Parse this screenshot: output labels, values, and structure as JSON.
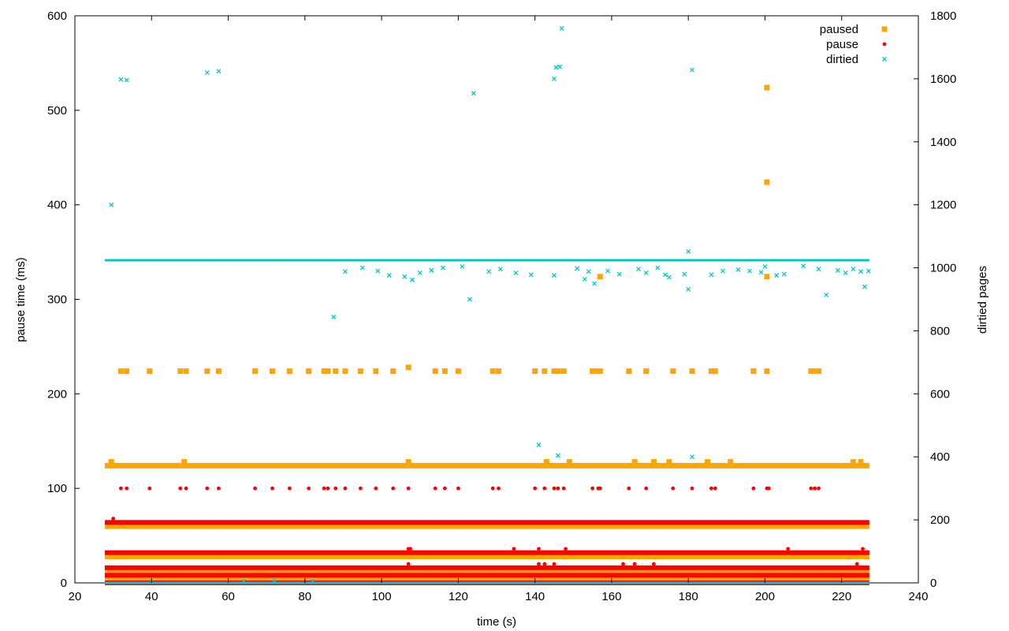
{
  "chart_data": {
    "type": "scatter",
    "title": "",
    "xlabel": "time (s)",
    "ylabel": "pause time (ms)",
    "y2label": "dirtied pages",
    "xlim": [
      20,
      240
    ],
    "ylim": [
      0,
      600
    ],
    "y2lim": [
      0,
      1800
    ],
    "xticks": [
      20,
      40,
      60,
      80,
      100,
      120,
      140,
      160,
      180,
      200,
      220,
      240
    ],
    "yticks": [
      0,
      100,
      200,
      300,
      400,
      500,
      600
    ],
    "y2ticks": [
      0,
      200,
      400,
      600,
      800,
      1000,
      1200,
      1400,
      1600,
      1800
    ],
    "grid": false,
    "legend_position": "top-right",
    "colors": {
      "paused": "#ffa500",
      "pause": "#ff0000",
      "dirtied": "#00c8c8"
    },
    "series": [
      {
        "name": "paused",
        "axis": "y",
        "marker": "square",
        "bands": [
          {
            "y": 4,
            "x_range": [
              28,
              227
            ]
          },
          {
            "y": 12,
            "x_range": [
              28,
              227
            ]
          },
          {
            "y": 28,
            "x_range": [
              28,
              227
            ]
          },
          {
            "y": 60,
            "x_range": [
              28,
              227
            ]
          },
          {
            "y": 124,
            "x_range": [
              28,
              227
            ]
          }
        ],
        "points": [
          [
            29.5,
            128
          ],
          [
            48.5,
            128
          ],
          [
            107,
            128
          ],
          [
            143,
            128
          ],
          [
            149,
            128
          ],
          [
            166,
            128
          ],
          [
            171,
            128
          ],
          [
            175,
            128
          ],
          [
            185,
            128
          ],
          [
            191,
            128
          ],
          [
            223,
            128
          ],
          [
            225,
            128
          ],
          [
            32,
            224
          ],
          [
            33.5,
            224
          ],
          [
            39.5,
            224
          ],
          [
            47.5,
            224
          ],
          [
            49,
            224
          ],
          [
            54.5,
            224
          ],
          [
            57.5,
            224
          ],
          [
            67,
            224
          ],
          [
            71.5,
            224
          ],
          [
            76,
            224
          ],
          [
            81,
            224
          ],
          [
            85,
            224
          ],
          [
            86,
            224
          ],
          [
            88,
            224
          ],
          [
            90.5,
            224
          ],
          [
            94.5,
            224
          ],
          [
            98.5,
            224
          ],
          [
            103,
            224
          ],
          [
            107,
            228
          ],
          [
            114,
            224
          ],
          [
            116.5,
            224
          ],
          [
            120,
            224
          ],
          [
            129,
            224
          ],
          [
            130.5,
            224
          ],
          [
            140,
            224
          ],
          [
            142.5,
            224
          ],
          [
            145,
            224
          ],
          [
            146,
            224
          ],
          [
            147.5,
            224
          ],
          [
            155,
            224
          ],
          [
            156,
            224
          ],
          [
            157,
            224
          ],
          [
            164.5,
            224
          ],
          [
            169,
            224
          ],
          [
            176,
            224
          ],
          [
            181,
            224
          ],
          [
            186,
            224
          ],
          [
            187,
            224
          ],
          [
            197,
            224
          ],
          [
            200.5,
            224
          ],
          [
            212,
            224
          ],
          [
            213,
            224
          ],
          [
            214,
            224
          ],
          [
            157,
            324
          ],
          [
            200.5,
            324
          ],
          [
            200.5,
            424
          ],
          [
            200.5,
            524
          ]
        ]
      },
      {
        "name": "pause",
        "axis": "y",
        "marker": "dot",
        "bands": [
          {
            "y": 0,
            "x_range": [
              28,
              227
            ]
          },
          {
            "y": 8,
            "x_range": [
              28,
              227
            ]
          },
          {
            "y": 16,
            "x_range": [
              28,
              227
            ]
          },
          {
            "y": 32,
            "x_range": [
              28,
              227
            ]
          },
          {
            "y": 64,
            "x_range": [
              28,
              227
            ]
          }
        ],
        "points": [
          [
            30,
            68
          ],
          [
            107,
            36
          ],
          [
            107.5,
            36
          ],
          [
            134.5,
            36
          ],
          [
            141,
            36
          ],
          [
            148,
            36
          ],
          [
            206,
            36
          ],
          [
            225.5,
            36
          ],
          [
            107,
            20
          ],
          [
            141,
            20
          ],
          [
            142.5,
            20
          ],
          [
            145,
            20
          ],
          [
            163,
            20
          ],
          [
            166,
            20
          ],
          [
            171,
            20
          ],
          [
            224,
            20
          ],
          [
            32,
            100
          ],
          [
            33.5,
            100
          ],
          [
            39.5,
            100
          ],
          [
            47.5,
            100
          ],
          [
            49,
            100
          ],
          [
            54.5,
            100
          ],
          [
            57.5,
            100
          ],
          [
            67,
            100
          ],
          [
            71.5,
            100
          ],
          [
            76,
            100
          ],
          [
            81,
            100
          ],
          [
            85,
            100
          ],
          [
            86,
            100
          ],
          [
            88,
            100
          ],
          [
            90.5,
            100
          ],
          [
            94.5,
            100
          ],
          [
            98.5,
            100
          ],
          [
            103,
            100
          ],
          [
            107,
            100
          ],
          [
            114,
            100
          ],
          [
            116.5,
            100
          ],
          [
            120,
            100
          ],
          [
            129,
            100
          ],
          [
            130.5,
            100
          ],
          [
            140,
            100
          ],
          [
            142.5,
            100
          ],
          [
            145,
            100
          ],
          [
            146,
            100
          ],
          [
            147.5,
            100
          ],
          [
            155,
            100
          ],
          [
            156.5,
            100
          ],
          [
            157,
            100
          ],
          [
            164.5,
            100
          ],
          [
            169,
            100
          ],
          [
            176,
            100
          ],
          [
            181,
            100
          ],
          [
            186,
            100
          ],
          [
            187,
            100
          ],
          [
            197,
            100
          ],
          [
            200.5,
            100
          ],
          [
            201,
            100
          ],
          [
            212,
            100
          ],
          [
            213,
            100
          ],
          [
            214,
            100
          ]
        ]
      },
      {
        "name": "dirtied",
        "axis": "y2",
        "marker": "cross",
        "bands": [
          {
            "y": 0,
            "x_range": [
              28,
              227
            ]
          },
          {
            "y": 1024,
            "x_range": [
              28,
              227
            ]
          }
        ],
        "points": [
          [
            29.5,
            1200
          ],
          [
            32,
            1598
          ],
          [
            33.5,
            1596
          ],
          [
            54.5,
            1620
          ],
          [
            57.5,
            1624
          ],
          [
            124,
            1554
          ],
          [
            145,
            1600
          ],
          [
            145.5,
            1636
          ],
          [
            146.5,
            1638
          ],
          [
            147,
            1760
          ],
          [
            181,
            1628
          ],
          [
            87.5,
            844
          ],
          [
            123,
            900
          ],
          [
            155.5,
            950
          ],
          [
            180,
            1052
          ],
          [
            180,
            932
          ],
          [
            216,
            914
          ],
          [
            226,
            940
          ],
          [
            141,
            438
          ],
          [
            146,
            404
          ],
          [
            181,
            400
          ],
          [
            90.5,
            988
          ],
          [
            95,
            1000
          ],
          [
            99,
            990
          ],
          [
            102,
            976
          ],
          [
            106,
            972
          ],
          [
            108,
            962
          ],
          [
            110,
            984
          ],
          [
            113,
            992
          ],
          [
            116,
            1000
          ],
          [
            121,
            1004
          ],
          [
            128,
            988
          ],
          [
            131,
            996
          ],
          [
            135,
            984
          ],
          [
            139,
            978
          ],
          [
            145,
            976
          ],
          [
            151,
            998
          ],
          [
            153,
            964
          ],
          [
            154,
            988
          ],
          [
            159,
            990
          ],
          [
            162,
            980
          ],
          [
            167,
            996
          ],
          [
            169,
            984
          ],
          [
            172,
            1000
          ],
          [
            174,
            978
          ],
          [
            175,
            970
          ],
          [
            179,
            980
          ],
          [
            186,
            978
          ],
          [
            189,
            990
          ],
          [
            193,
            994
          ],
          [
            196,
            990
          ],
          [
            199,
            986
          ],
          [
            200,
            1004
          ],
          [
            203,
            976
          ],
          [
            205,
            980
          ],
          [
            210,
            1006
          ],
          [
            214,
            996
          ],
          [
            219,
            992
          ],
          [
            221,
            984
          ],
          [
            223,
            996
          ],
          [
            225,
            988
          ],
          [
            227,
            990
          ],
          [
            40,
            4
          ],
          [
            64,
            6
          ],
          [
            72,
            8
          ],
          [
            82,
            6
          ]
        ]
      }
    ]
  }
}
